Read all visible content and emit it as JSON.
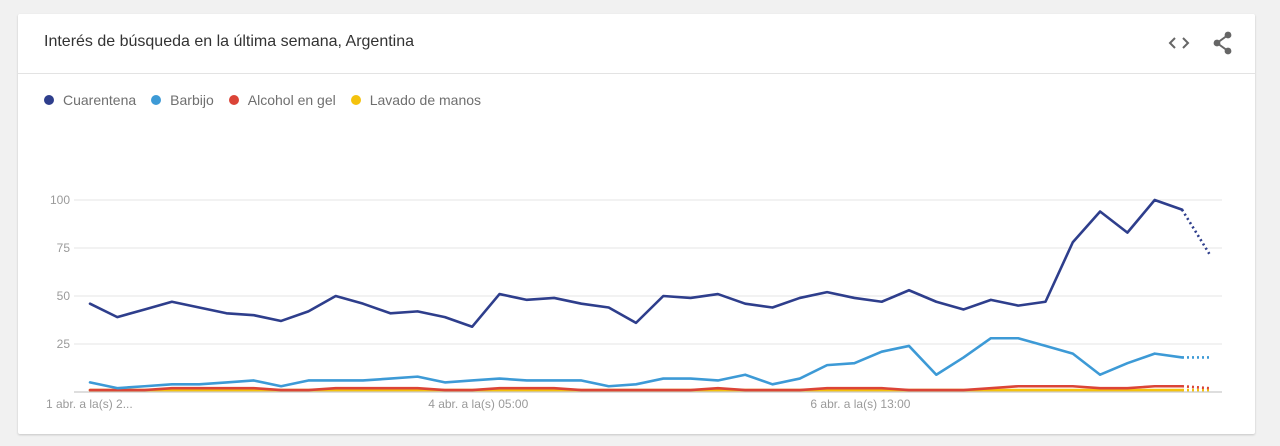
{
  "header": {
    "title": "Interés de búsqueda en la última semana, Argentina",
    "embed_icon": "code-embed-icon",
    "share_icon": "share-icon"
  },
  "chart_data": {
    "type": "line",
    "title": "Interés de búsqueda en la última semana, Argentina",
    "xlabel": "",
    "ylabel": "",
    "ylim": [
      0,
      100
    ],
    "yticks": [
      25,
      50,
      75,
      100
    ],
    "grid": true,
    "legend_position": "top-left",
    "x_tick_labels": [
      {
        "index": 0,
        "label": "1 abr. a la(s) 2..."
      },
      {
        "index": 14,
        "label": "4 abr. a la(s) 05:00"
      },
      {
        "index": 28,
        "label": "6 abr. a la(s) 13:00"
      }
    ],
    "partial_from_index": 40,
    "series": [
      {
        "name": "Cuarentena",
        "color": "#2e3e8c",
        "values": [
          46,
          39,
          43,
          47,
          44,
          41,
          40,
          37,
          42,
          50,
          46,
          41,
          42,
          39,
          34,
          51,
          48,
          49,
          46,
          44,
          36,
          50,
          49,
          51,
          46,
          44,
          49,
          52,
          49,
          47,
          53,
          47,
          43,
          48,
          45,
          47,
          78,
          94,
          83,
          100,
          95,
          72
        ]
      },
      {
        "name": "Barbijo",
        "color": "#3d9ad6",
        "values": [
          5,
          2,
          3,
          4,
          4,
          5,
          6,
          3,
          6,
          6,
          6,
          7,
          8,
          5,
          6,
          7,
          6,
          6,
          6,
          3,
          4,
          7,
          7,
          6,
          9,
          4,
          7,
          14,
          15,
          21,
          24,
          9,
          18,
          28,
          28,
          24,
          20,
          9,
          15,
          20,
          18,
          18
        ]
      },
      {
        "name": "Alcohol en gel",
        "color": "#db4437",
        "values": [
          1,
          1,
          1,
          2,
          2,
          2,
          2,
          1,
          1,
          2,
          2,
          2,
          2,
          1,
          1,
          2,
          2,
          2,
          1,
          1,
          1,
          1,
          1,
          2,
          1,
          1,
          1,
          2,
          2,
          2,
          1,
          1,
          1,
          2,
          3,
          3,
          3,
          2,
          2,
          3,
          3,
          2
        ]
      },
      {
        "name": "Lavado de manos",
        "color": "#f4c20d",
        "values": [
          1,
          1,
          1,
          1,
          1,
          1,
          1,
          1,
          1,
          1,
          1,
          1,
          1,
          1,
          1,
          1,
          1,
          1,
          1,
          1,
          1,
          1,
          1,
          1,
          1,
          1,
          1,
          1,
          1,
          1,
          1,
          1,
          1,
          1,
          1,
          1,
          1,
          1,
          1,
          1,
          1,
          1
        ]
      }
    ]
  }
}
